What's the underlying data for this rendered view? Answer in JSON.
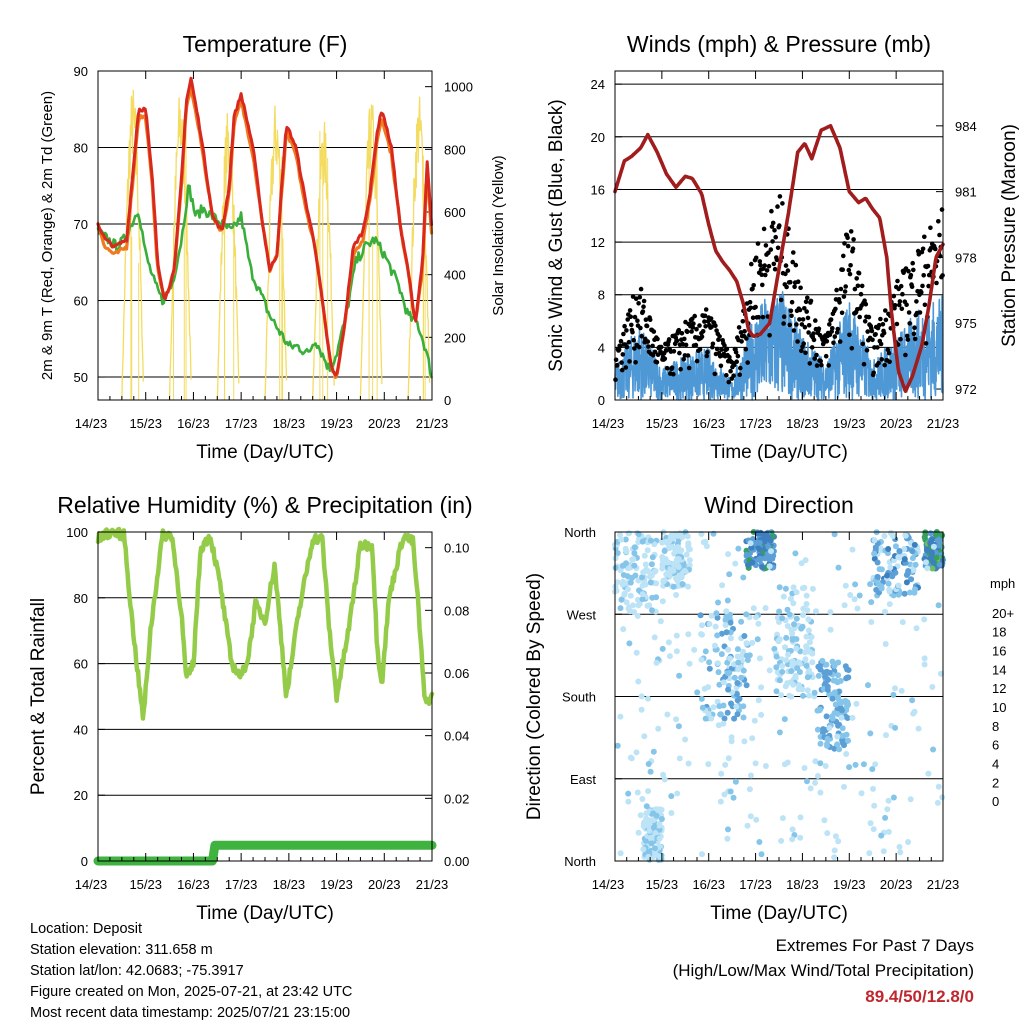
{
  "colors": {
    "temp_2m": "#d9281e",
    "temp_9m": "#f07a1e",
    "dewpoint": "#3aae3a",
    "solar": "#f3dc60",
    "wind": "#4f98d6",
    "gust": "#000000",
    "pressure": "#a11d1d",
    "rh": "#94cc4a",
    "precip": "#3fb23f",
    "speed_scale": [
      "#bde3f6",
      "#86c5ea",
      "#5b9fd6",
      "#3e7fbf",
      "#35a15d",
      "#6cc15a",
      "#dde74b",
      "#f4b24a",
      "#ef6b28",
      "#d93526",
      "#c11c22",
      "#991517"
    ]
  },
  "x_ticks": [
    "14/23",
    "15/23",
    "16/23",
    "17/23",
    "18/23",
    "19/23",
    "20/23",
    "21/23"
  ],
  "chart_data": [
    {
      "type": "line",
      "title": "Temperature (F)",
      "xlabel": "Time (Day/UTC)",
      "ylabel": "2m & 9m T (Red, Orange) & 2m Td (Green)",
      "ylabel_right": "Solar Insolation (Yellow)",
      "ylim": [
        47,
        90
      ],
      "ylim_right": [
        0,
        1050
      ],
      "yticks": [
        50,
        60,
        70,
        80,
        90
      ],
      "yticks_right": [
        0,
        200,
        400,
        600,
        800,
        1000
      ],
      "series": [
        {
          "name": "2m T",
          "x": [
            0,
            0.15,
            0.35,
            0.6,
            0.75,
            0.85,
            1.0,
            1.15,
            1.25,
            1.4,
            1.6,
            1.75,
            1.85,
            1.95,
            2.15,
            2.4,
            2.6,
            2.75,
            2.85,
            3.0,
            3.25,
            3.45,
            3.6,
            3.75,
            3.85,
            3.95,
            4.15,
            4.35,
            4.55,
            4.7,
            4.8,
            4.9,
            5.0,
            5.15,
            5.35,
            5.55,
            5.7,
            5.85,
            5.95,
            6.15,
            6.35,
            6.5,
            6.65,
            6.8,
            6.9,
            7.0
          ],
          "y": [
            70,
            68,
            67,
            68,
            78,
            85,
            85,
            75,
            65,
            60,
            64,
            76,
            86,
            89,
            82,
            71,
            69,
            75,
            84,
            87,
            80,
            70,
            64,
            66,
            75,
            83,
            80,
            73,
            67,
            60,
            55,
            51,
            50,
            56,
            67,
            69,
            74,
            82,
            85,
            80,
            69,
            64,
            57,
            65,
            78,
            69
          ]
        },
        {
          "name": "9m T",
          "x": [
            0,
            0.15,
            0.35,
            0.6,
            0.75,
            0.85,
            1.0,
            1.15,
            1.25,
            1.4,
            1.6,
            1.75,
            1.85,
            1.95,
            2.15,
            2.4,
            2.6,
            2.75,
            2.85,
            3.0,
            3.25,
            3.45,
            3.6,
            3.75,
            3.85,
            3.95,
            4.15,
            4.35,
            4.55,
            4.7,
            4.8,
            4.9,
            5.0,
            5.15,
            5.35,
            5.55,
            5.7,
            5.85,
            5.95,
            6.15,
            6.35,
            6.5,
            6.65,
            6.8,
            6.9,
            7.0
          ],
          "y": [
            70,
            67,
            66,
            67,
            77,
            84,
            84,
            74,
            64,
            60,
            64,
            75,
            85,
            88,
            81,
            71,
            69,
            74,
            83,
            86,
            79,
            70,
            64,
            66,
            74,
            82,
            79,
            72,
            67,
            60,
            55,
            51,
            50,
            56,
            66,
            68,
            73,
            81,
            84,
            79,
            69,
            64,
            57,
            64,
            77,
            68
          ]
        },
        {
          "name": "2m Td",
          "x": [
            0,
            0.2,
            0.4,
            0.55,
            0.7,
            0.85,
            1.0,
            1.2,
            1.35,
            1.55,
            1.75,
            1.9,
            2.05,
            2.2,
            2.4,
            2.6,
            2.8,
            3.0,
            3.2,
            3.4,
            3.6,
            3.8,
            4.0,
            4.2,
            4.4,
            4.55,
            4.7,
            4.85,
            5.0,
            5.2,
            5.4,
            5.6,
            5.8,
            6.0,
            6.15,
            6.3,
            6.5,
            6.7,
            6.85,
            7.0
          ],
          "y": [
            69,
            68,
            67,
            68,
            70,
            72,
            66,
            62,
            60,
            62,
            68,
            75,
            71,
            72,
            71,
            70,
            69,
            71,
            64,
            61,
            58,
            56,
            54,
            54,
            53,
            55,
            53,
            51,
            53,
            58,
            65,
            67,
            68,
            66,
            64,
            62,
            58,
            57,
            54,
            50
          ]
        },
        {
          "name": "Solar Insolation",
          "peak_day_fraction": 0.72,
          "daily_peaks": [
            1010,
            1000,
            930,
            960,
            900,
            970,
            980
          ]
        }
      ]
    },
    {
      "type": "line",
      "title": "Winds (mph) & Pressure (mb)",
      "xlabel": "Time (Day/UTC)",
      "ylabel": "Sonic Wind & Gust (Blue, Black)",
      "ylabel_right": "Station Pressure (Maroon)",
      "ylim": [
        0,
        25
      ],
      "ylim_right": [
        971.5,
        986.5
      ],
      "yticks": [
        0,
        4,
        8,
        12,
        16,
        20,
        24
      ],
      "yticks_right": [
        972,
        975,
        978,
        981,
        984
      ],
      "series": [
        {
          "name": "Station Pressure",
          "x": [
            0,
            0.2,
            0.35,
            0.55,
            0.7,
            0.9,
            1.1,
            1.3,
            1.5,
            1.65,
            1.85,
            2.0,
            2.15,
            2.3,
            2.45,
            2.6,
            2.75,
            2.85,
            2.95,
            3.1,
            3.3,
            3.5,
            3.7,
            3.9,
            4.05,
            4.2,
            4.4,
            4.6,
            4.8,
            5.0,
            5.2,
            5.35,
            5.5,
            5.65,
            5.8,
            5.9,
            6.05,
            6.2,
            6.35,
            6.55,
            6.7,
            6.85,
            7.0
          ],
          "y": [
            981,
            982.4,
            982.6,
            983,
            983.6,
            982.8,
            981.8,
            981.2,
            981.7,
            981.6,
            980.9,
            979.5,
            978.3,
            977.8,
            977.4,
            976.9,
            975.8,
            974.7,
            974.4,
            974.5,
            975,
            977.5,
            980,
            982.8,
            983.2,
            982.5,
            983.8,
            984,
            983,
            981,
            980.5,
            980.7,
            980.2,
            979.8,
            978,
            975.5,
            972.8,
            971.9,
            972.6,
            974,
            975.8,
            978,
            978.6
          ]
        },
        {
          "name": "Sonic Wind",
          "envelope_x": [
            0,
            0.5,
            1.0,
            1.5,
            2.0,
            2.5,
            3.0,
            3.5,
            4.0,
            4.5,
            5.0,
            5.5,
            6.0,
            6.5,
            7.0
          ],
          "envelope_y": [
            2.5,
            6,
            2.5,
            3.5,
            4,
            1.5,
            7,
            9,
            5,
            3,
            8,
            3,
            5,
            7,
            8
          ]
        },
        {
          "name": "Gust",
          "envelope_x": [
            0,
            0.5,
            1.0,
            1.5,
            2.0,
            2.5,
            3.0,
            3.5,
            4.0,
            4.5,
            5.0,
            5.5,
            6.0,
            6.5,
            7.0
          ],
          "envelope_y": [
            4,
            9,
            4,
            6,
            7,
            3,
            12,
            16,
            9,
            5,
            14,
            5,
            9,
            12,
            15
          ]
        }
      ]
    },
    {
      "type": "line",
      "title": "Relative Humidity (%) & Precipitation (in)",
      "xlabel": "Time (Day/UTC)",
      "ylabel": "Percent & Total Rainfall",
      "ylim": [
        0,
        100
      ],
      "ylim_right": [
        0,
        0.105
      ],
      "yticks": [
        0,
        20,
        40,
        60,
        80,
        100
      ],
      "yticks_right": [
        "0.00",
        "0.02",
        "0.04",
        "0.06",
        "0.08",
        "0.10"
      ],
      "series": [
        {
          "name": "Relative Humidity",
          "x": [
            0,
            0.1,
            0.3,
            0.55,
            0.7,
            0.85,
            0.95,
            1.1,
            1.35,
            1.55,
            1.75,
            1.85,
            2.0,
            2.15,
            2.35,
            2.55,
            2.8,
            3.0,
            3.15,
            3.3,
            3.5,
            3.7,
            3.85,
            3.95,
            4.2,
            4.5,
            4.7,
            4.85,
            5.0,
            5.25,
            5.5,
            5.75,
            5.85,
            5.95,
            6.1,
            6.4,
            6.6,
            6.7,
            6.85,
            7.0
          ],
          "y": [
            98,
            99,
            100,
            99,
            75,
            55,
            43,
            70,
            99,
            99,
            75,
            55,
            60,
            95,
            99,
            85,
            60,
            56,
            62,
            78,
            73,
            90,
            66,
            50,
            75,
            98,
            98,
            70,
            50,
            70,
            96,
            96,
            65,
            54,
            80,
            99,
            97,
            80,
            48,
            50
          ]
        },
        {
          "name": "Total Precipitation",
          "x": [
            0,
            2.4,
            2.45,
            7.0
          ],
          "y": [
            0.0,
            0.0,
            0.005,
            0.005
          ]
        }
      ]
    },
    {
      "type": "scatter",
      "title": "Wind Direction",
      "xlabel": "Time (Day/UTC)",
      "ylabel": "Direction (Colored By Speed)",
      "yticks": [
        "North",
        "East",
        "South",
        "West",
        "North"
      ],
      "ylim": [
        0,
        360
      ],
      "colorbar_title": "mph",
      "colorbar_labels": [
        "0",
        "2",
        "4",
        "6",
        "8",
        "10",
        "12",
        "14",
        "16",
        "18",
        "20+"
      ],
      "clusters": [
        {
          "x": [
            0.0,
            0.9
          ],
          "dir": [
            270,
            360
          ],
          "speed": [
            0,
            4
          ]
        },
        {
          "x": [
            0.6,
            1.0
          ],
          "dir": [
            0,
            60
          ],
          "speed": [
            0,
            4
          ]
        },
        {
          "x": [
            1.0,
            1.6
          ],
          "dir": [
            300,
            360
          ],
          "speed": [
            0,
            3
          ]
        },
        {
          "x": [
            1.8,
            2.9
          ],
          "dir": [
            150,
            270
          ],
          "speed": [
            1,
            6
          ]
        },
        {
          "x": [
            2.8,
            3.4
          ],
          "dir": [
            320,
            360
          ],
          "speed": [
            4,
            9
          ]
        },
        {
          "x": [
            3.4,
            4.3
          ],
          "dir": [
            180,
            300
          ],
          "speed": [
            0,
            4
          ]
        },
        {
          "x": [
            4.3,
            5.0
          ],
          "dir": [
            120,
            220
          ],
          "speed": [
            2,
            6
          ]
        },
        {
          "x": [
            5.5,
            6.5
          ],
          "dir": [
            290,
            360
          ],
          "speed": [
            1,
            7
          ]
        },
        {
          "x": [
            6.6,
            7.0
          ],
          "dir": [
            320,
            360
          ],
          "speed": [
            5,
            11
          ]
        },
        {
          "x": [
            0.0,
            7.0
          ],
          "dir": [
            0,
            360
          ],
          "speed": [
            0,
            3
          ]
        }
      ]
    }
  ],
  "info": {
    "location": "Location: Deposit",
    "elevation": "Station elevation: 311.658 m",
    "latlon": "Station lat/lon: 42.0683; -75.3917",
    "created": "Figure created on Mon, 2025-07-21, at 23:42 UTC",
    "timestamp": "Most recent data timestamp: 2025/07/21 23:15:00"
  },
  "extremes": {
    "line1": "Extremes For Past 7 Days",
    "line2": "(High/Low/Max Wind/Total Precipitation)",
    "value": "89.4/50/12.8/0"
  }
}
